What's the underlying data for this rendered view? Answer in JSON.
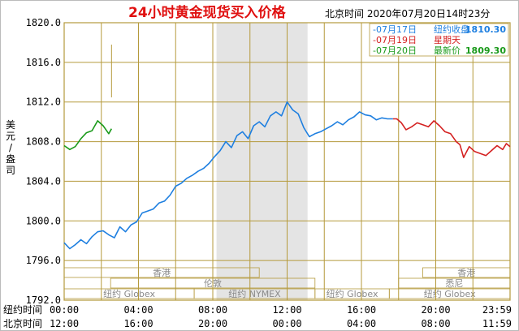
{
  "chart_data": {
    "type": "line",
    "title": "24小时黄金现货买入价格",
    "subtitle": "北京时间 2020年07月20日14时23分",
    "ylabel": "美元/盎司",
    "ylim": [
      1792.0,
      1820.0
    ],
    "yticks": [
      "1820.0",
      "1816.0",
      "1812.0",
      "1808.0",
      "1804.0",
      "1800.0",
      "1796.0",
      "1792.0"
    ],
    "xlim": [
      0,
      24
    ],
    "x_rows": [
      {
        "label": "纽约时间",
        "ticks": [
          "00:00",
          "04:00",
          "08:00",
          "12:00",
          "16:00",
          "20:00",
          "23:59"
        ]
      },
      {
        "label": "北京时间",
        "ticks": [
          "12:00",
          "16:00",
          "20:00",
          "00:00",
          "04:00",
          "08:00",
          "11:59"
        ]
      }
    ],
    "grid": true,
    "legend_position": "top-right",
    "legend": [
      {
        "date": "07月17日",
        "text": "纽约收盘",
        "value": "1810.30",
        "color": "#1e7fe0"
      },
      {
        "date": "07月19日",
        "text": "星期天",
        "value": "",
        "color": "#d42020"
      },
      {
        "date": "07月20日",
        "text": "最新价",
        "value": "1809.30",
        "color": "#1a9a1a"
      }
    ],
    "series": [
      {
        "color": "#1e7fe0",
        "x": [
          0.0,
          0.3,
          0.6,
          0.9,
          1.2,
          1.5,
          1.8,
          2.1,
          2.4,
          2.7,
          3.0,
          3.3,
          3.6,
          3.9,
          4.2,
          4.5,
          4.8,
          5.1,
          5.4,
          5.7,
          6.0,
          6.3,
          6.6,
          6.9,
          7.2,
          7.5,
          7.8,
          8.1,
          8.4,
          8.7,
          9.0,
          9.3,
          9.6,
          9.9,
          10.2,
          10.5,
          10.8,
          11.1,
          11.4,
          11.7,
          12.0,
          12.3,
          12.6,
          12.9,
          13.2,
          13.5,
          13.8,
          14.1,
          14.4,
          14.7,
          15.0,
          15.3,
          15.6,
          15.9,
          16.2,
          16.5,
          16.8,
          17.1,
          17.4,
          17.7
        ],
        "values": [
          1797.8,
          1797.2,
          1797.6,
          1798.1,
          1797.7,
          1798.4,
          1798.9,
          1799.0,
          1798.6,
          1798.3,
          1799.4,
          1798.9,
          1799.6,
          1799.9,
          1800.8,
          1801.0,
          1801.2,
          1801.8,
          1802.0,
          1802.6,
          1803.5,
          1803.8,
          1804.3,
          1804.6,
          1805.0,
          1805.3,
          1805.8,
          1806.5,
          1807.1,
          1808.0,
          1807.4,
          1808.6,
          1809.0,
          1808.3,
          1809.6,
          1810.0,
          1809.5,
          1810.6,
          1811.0,
          1810.6,
          1812.0,
          1811.2,
          1810.8,
          1809.4,
          1808.5,
          1808.8,
          1809.0,
          1809.3,
          1809.6,
          1810.0,
          1809.7,
          1810.2,
          1810.5,
          1811.0,
          1810.7,
          1810.6,
          1810.2,
          1810.4,
          1810.3,
          1810.3
        ]
      },
      {
        "color": "#d42020",
        "x": [
          17.7,
          17.9,
          18.15,
          18.4,
          18.7,
          19.0,
          19.3,
          19.6,
          19.9,
          20.2,
          20.5,
          20.8,
          21.1,
          21.3,
          21.5,
          21.8,
          22.1,
          22.4,
          22.7,
          23.0,
          23.3,
          23.6,
          23.8,
          24.0
        ],
        "values": [
          1810.3,
          1810.3,
          1809.9,
          1809.2,
          1809.5,
          1809.9,
          1809.7,
          1809.5,
          1810.1,
          1809.6,
          1809.0,
          1808.8,
          1808.0,
          1807.7,
          1806.4,
          1807.5,
          1807.0,
          1806.8,
          1806.6,
          1807.1,
          1807.6,
          1807.2,
          1807.8,
          1807.5
        ]
      },
      {
        "color": "#1a9a1a",
        "x": [
          0.0,
          0.3,
          0.6,
          0.9,
          1.2,
          1.5,
          1.8,
          2.1,
          2.4,
          2.55
        ],
        "values": [
          1807.6,
          1807.2,
          1807.5,
          1808.3,
          1808.9,
          1809.1,
          1810.1,
          1809.6,
          1808.8,
          1809.3
        ]
      }
    ],
    "markets": [
      {
        "name": "香港",
        "row": 0,
        "start": 0.0,
        "end": 10.5
      },
      {
        "name": "香港",
        "row": 0,
        "start": 19.3,
        "end": 24.0
      },
      {
        "name": "伦敦",
        "row": 1,
        "start": 2.5,
        "end": 13.5
      },
      {
        "name": "悉尼",
        "row": 1,
        "start": 18.0,
        "end": 24.0
      },
      {
        "name": "纽约 Globex",
        "row": 2,
        "start": 0.0,
        "end": 7.0
      },
      {
        "name": "纽约 NYMEX",
        "row": 2,
        "start": 7.0,
        "end": 13.5
      },
      {
        "name": "纽约 Globex",
        "row": 2,
        "start": 13.5,
        "end": 17.5
      },
      {
        "name": "纽约 Globex",
        "row": 2,
        "start": 17.5,
        "end": 24.0
      }
    ],
    "shaded_region": [
      8.2,
      13.1
    ],
    "now_line": 2.55
  }
}
